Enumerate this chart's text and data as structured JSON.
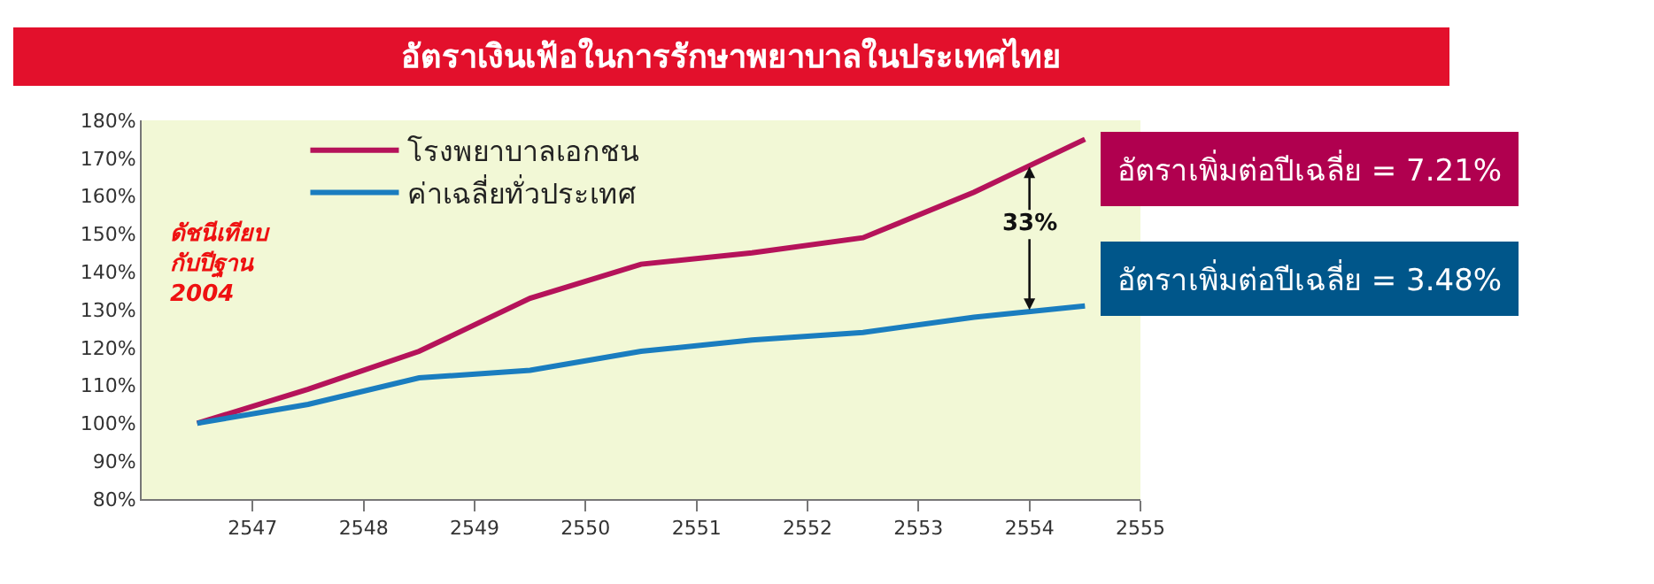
{
  "chart_data": {
    "type": "line",
    "title": "อัตราเงินเฟ้อในการรักษาพยาบาลในประเทศไทย",
    "x": [
      2546.5,
      2547.5,
      2548.5,
      2549.5,
      2550.5,
      2551.5,
      2552.5,
      2553.5,
      2554.5
    ],
    "series": [
      {
        "name": "โรงพยาบาลเอกชน",
        "color": "#b5135a",
        "values": [
          100,
          109,
          119,
          133,
          142,
          145,
          149,
          161,
          175
        ]
      },
      {
        "name": "ค่าเฉลี่ยทั่วประเทศ",
        "color": "#1a7dbf",
        "values": [
          100,
          105,
          112,
          114,
          119,
          122,
          124,
          128,
          131
        ]
      }
    ],
    "xlim": [
      2546,
      2555
    ],
    "xticks": [
      2547,
      2548,
      2549,
      2550,
      2551,
      2552,
      2553,
      2554,
      2555
    ],
    "ylim": [
      80,
      180
    ],
    "yticks": [
      {
        "value": 80,
        "label": "80%"
      },
      {
        "value": 90,
        "label": "90%"
      },
      {
        "value": 100,
        "label": "100%"
      },
      {
        "value": 110,
        "label": "110%"
      },
      {
        "value": 120,
        "label": "120%"
      },
      {
        "value": 130,
        "label": "130%"
      },
      {
        "value": 140,
        "label": "140%"
      },
      {
        "value": 150,
        "label": "150%"
      },
      {
        "value": 160,
        "label": "160%"
      },
      {
        "value": 170,
        "label": "170%"
      },
      {
        "value": 180,
        "label": "180%"
      }
    ],
    "annotations": [
      "ดัชนีเทียบ\nกับปีฐาน\n2004",
      {
        "text": "33%",
        "x": 2554,
        "y": 129.5
      },
      "อัตราเพิ่มต่อปีเฉลี่ย = 7.21%",
      "อัตราเพิ่มต่อปีเฉลี่ย = 3.48%"
    ],
    "legend": "top left",
    "grid": false,
    "marker": "none",
    "line_style": "solid"
  }
}
